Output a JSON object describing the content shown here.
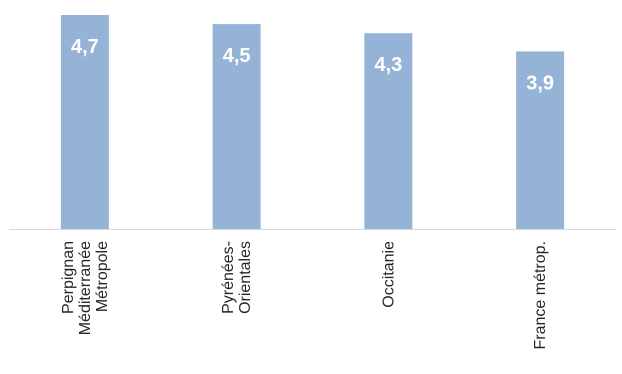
{
  "chart_data": {
    "type": "bar",
    "categories": [
      [
        "Perpignan",
        "Méditerranée",
        "Métropole"
      ],
      [
        "Pyrénées-",
        "Orientales"
      ],
      [
        "Occitanie"
      ],
      [
        "France métrop."
      ]
    ],
    "values": [
      4.7,
      4.5,
      4.3,
      3.9
    ],
    "data_labels": [
      "4,7",
      "4,5",
      "4,3",
      "3,9"
    ],
    "title": "",
    "xlabel": "",
    "ylabel": "",
    "ylim": [
      0,
      4.7
    ],
    "grid": false,
    "legend": "none",
    "bar_color": "#95b3d7",
    "label_color": "#ffffff"
  }
}
